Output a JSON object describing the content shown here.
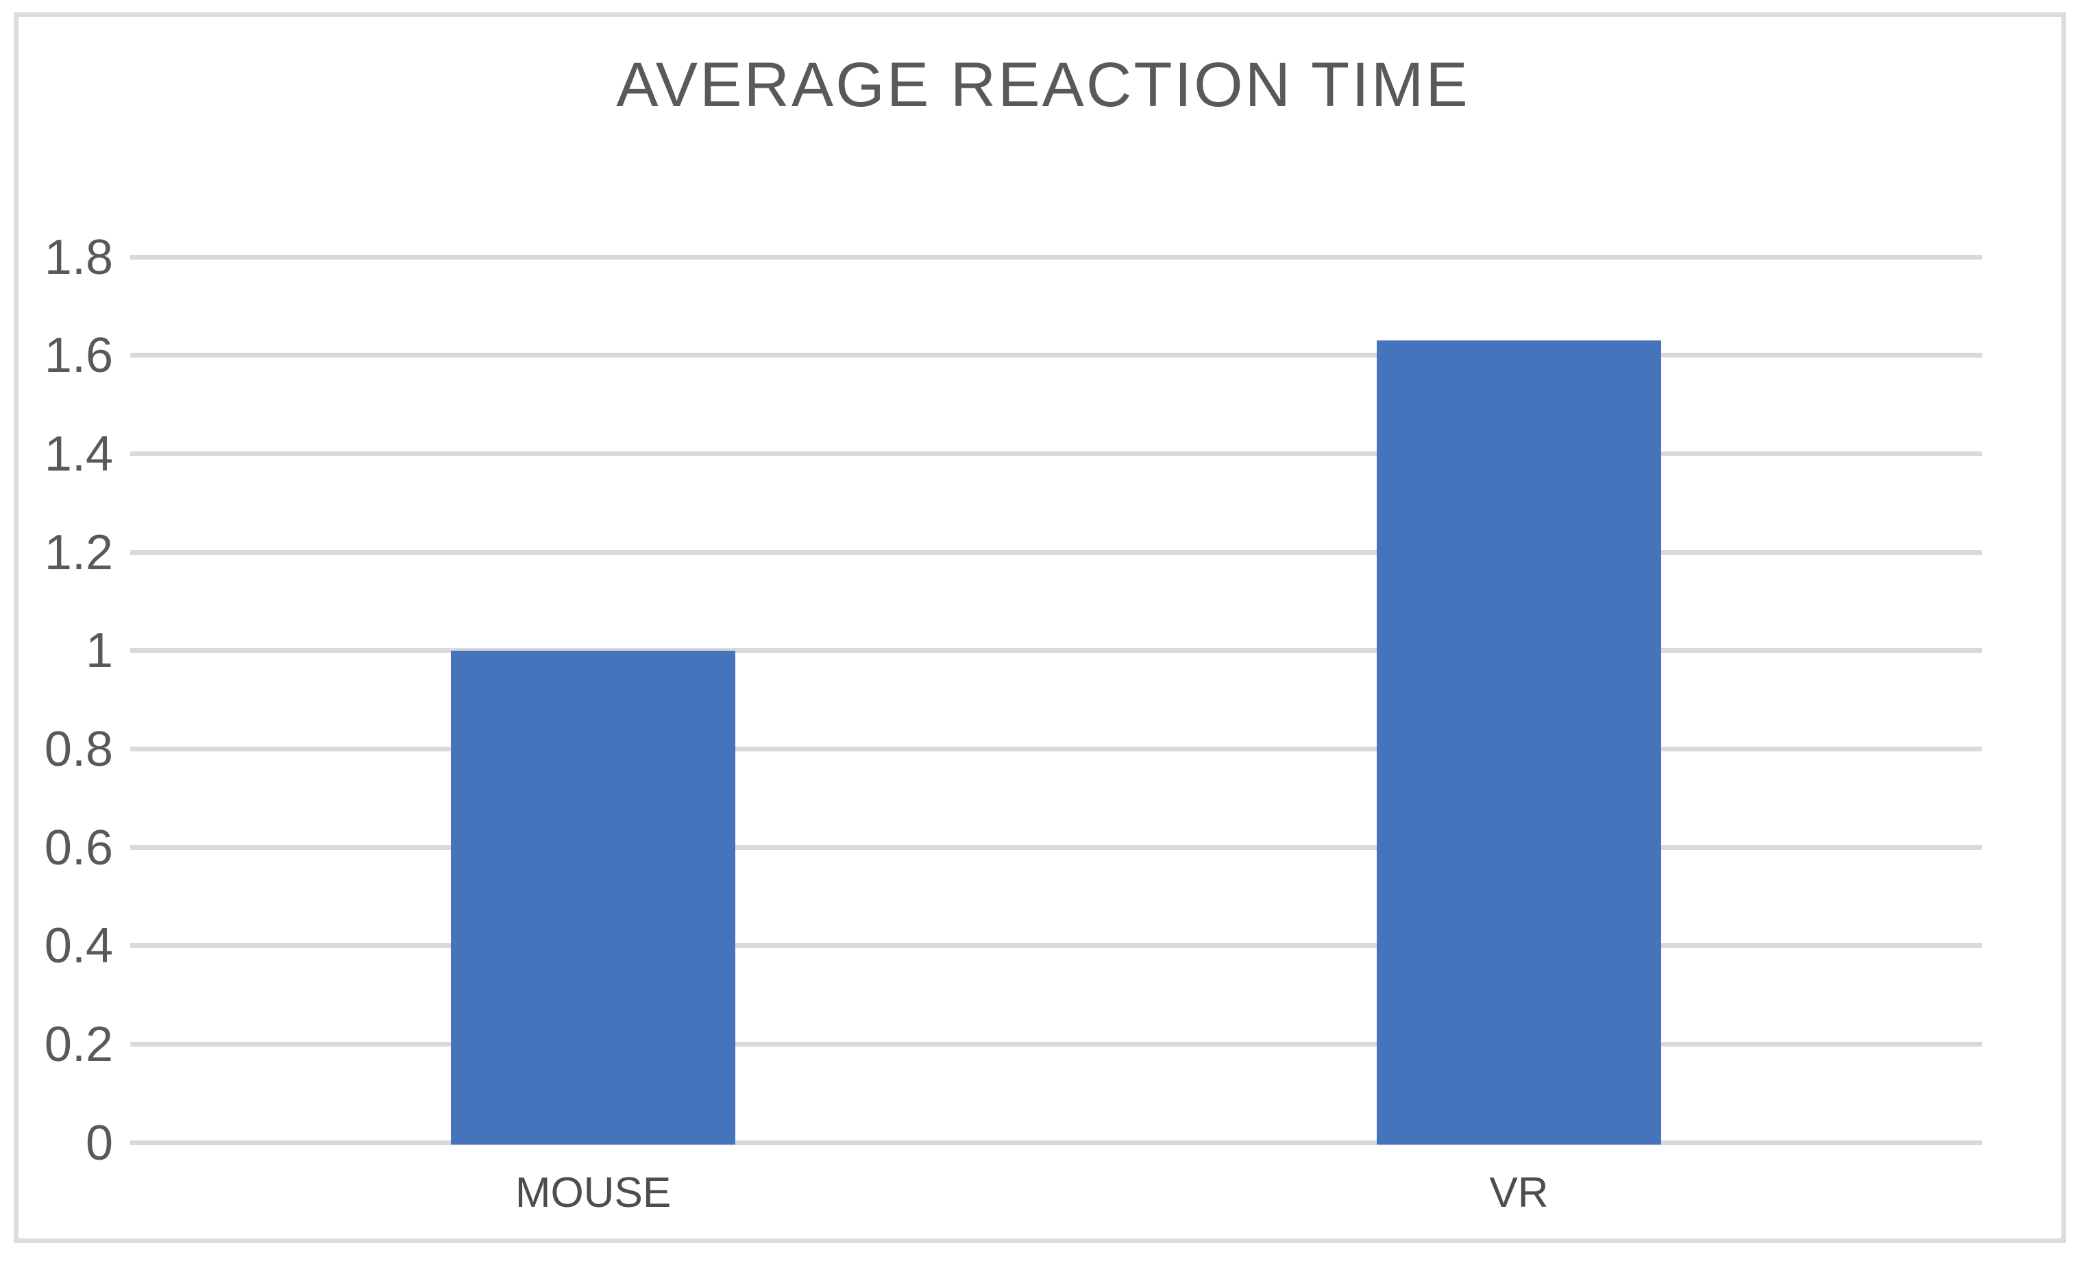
{
  "chart": {
    "title": "AVERAGE REACTION TIME"
  },
  "chart_data": {
    "type": "bar",
    "title": "AVERAGE REACTION TIME",
    "xlabel": "",
    "ylabel": "",
    "categories": [
      "MOUSE",
      "VR"
    ],
    "values": [
      1.0,
      1.63
    ],
    "ylim": [
      0,
      1.8
    ],
    "yticks": [
      0,
      0.2,
      0.4,
      0.6,
      0.8,
      1,
      1.2,
      1.4,
      1.6,
      1.8
    ],
    "ytick_labels": [
      "0",
      "0.2",
      "0.4",
      "0.6",
      "0.8",
      "1",
      "1.2",
      "1.4",
      "1.6",
      "1.8"
    ],
    "grid": true,
    "legend": false,
    "colors": {
      "bar": "#4674BC",
      "gridline": "#D9D9D9",
      "chart_border": "#DCDCDC",
      "title_text": "#595959",
      "tick_text": "#595959",
      "category_text": "#4D4D4D"
    }
  }
}
